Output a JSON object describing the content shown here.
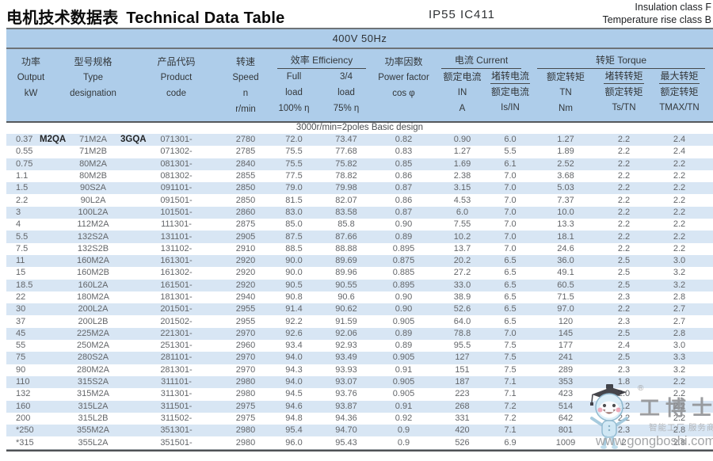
{
  "page": {
    "title_zh": "电机技术数据表",
    "title_en": "Technical Data Table",
    "protection": "IP55  IC411",
    "insulation_line1": "Insulation class F",
    "insulation_line2": "Temperature rise class B"
  },
  "table": {
    "voltage_header": "400V 50Hz",
    "section_header": "3000r/min=2poles Basic design",
    "columns": {
      "power": {
        "zh": "功率",
        "en": "Output",
        "unit": "kW"
      },
      "type": {
        "zh": "型号规格",
        "en": "Type",
        "unit": "designation"
      },
      "code": {
        "zh": "产品代码",
        "en": "Product",
        "unit": "code"
      },
      "speed": {
        "zh": "转速",
        "en": "Speed",
        "sym": "n",
        "unit": "r/min"
      },
      "efficiency_group": "效率 Efficiency",
      "eff_full": {
        "l1": "Full",
        "l2": "load",
        "l3": "100% η"
      },
      "eff_34": {
        "l1": "3/4",
        "l2": "load",
        "l3": "75% η"
      },
      "pf": {
        "zh": "功率因数",
        "en": "Power factor",
        "sym": "cos φ"
      },
      "current_group": "电流 Current",
      "in": {
        "zh": "额定电流",
        "sym": "IN",
        "unit": "A"
      },
      "isin": {
        "num": "堵转电流",
        "den": "额定电流",
        "sym": "Is/IN"
      },
      "torque_group": "转矩 Torque",
      "tn": {
        "zh": "额定转矩",
        "sym": "TN",
        "unit": "Nm"
      },
      "tstn": {
        "num": "堵转转矩",
        "den": "额定转矩",
        "sym": "Ts/TN"
      },
      "tmax": {
        "num": "最大转矩",
        "den": "额定转矩",
        "sym": "TMAX/TN"
      }
    },
    "row1_brand_prefix": "M2QA",
    "row1_brand_suffix": "3GQA",
    "rows": [
      [
        "0.37",
        "71M2A",
        "071301-",
        "2780",
        "72.0",
        "73.47",
        "0.82",
        "0.90",
        "6.0",
        "1.27",
        "2.2",
        "2.4"
      ],
      [
        "0.55",
        "71M2B",
        "071302-",
        "2785",
        "75.5",
        "77.68",
        "0.83",
        "1.27",
        "5.5",
        "1.89",
        "2.2",
        "2.4"
      ],
      [
        "0.75",
        "80M2A",
        "081301-",
        "2840",
        "75.5",
        "75.82",
        "0.85",
        "1.69",
        "6.1",
        "2.52",
        "2.2",
        "2.2"
      ],
      [
        "1.1",
        "80M2B",
        "081302-",
        "2855",
        "77.5",
        "78.82",
        "0.86",
        "2.38",
        "7.0",
        "3.68",
        "2.2",
        "2.2"
      ],
      [
        "1.5",
        "90S2A",
        "091101-",
        "2850",
        "79.0",
        "79.98",
        "0.87",
        "3.15",
        "7.0",
        "5.03",
        "2.2",
        "2.2"
      ],
      [
        "2.2",
        "90L2A",
        "091501-",
        "2850",
        "81.5",
        "82.07",
        "0.86",
        "4.53",
        "7.0",
        "7.37",
        "2.2",
        "2.2"
      ],
      [
        "3",
        "100L2A",
        "101501-",
        "2860",
        "83.0",
        "83.58",
        "0.87",
        "6.0",
        "7.0",
        "10.0",
        "2.2",
        "2.2"
      ],
      [
        "4",
        "112M2A",
        "111301-",
        "2875",
        "85.0",
        "85.8",
        "0.90",
        "7.55",
        "7.0",
        "13.3",
        "2.2",
        "2.2"
      ],
      [
        "5.5",
        "132S2A",
        "131101-",
        "2905",
        "87.5",
        "87.66",
        "0.89",
        "10.2",
        "7.0",
        "18.1",
        "2.2",
        "2.2"
      ],
      [
        "7.5",
        "132S2B",
        "131102-",
        "2910",
        "88.5",
        "88.88",
        "0.895",
        "13.7",
        "7.0",
        "24.6",
        "2.2",
        "2.2"
      ],
      [
        "11",
        "160M2A",
        "161301-",
        "2920",
        "90.0",
        "89.69",
        "0.875",
        "20.2",
        "6.5",
        "36.0",
        "2.5",
        "3.0"
      ],
      [
        "15",
        "160M2B",
        "161302-",
        "2920",
        "90.0",
        "89.96",
        "0.885",
        "27.2",
        "6.5",
        "49.1",
        "2.5",
        "3.2"
      ],
      [
        "18.5",
        "160L2A",
        "161501-",
        "2920",
        "90.5",
        "90.55",
        "0.895",
        "33.0",
        "6.5",
        "60.5",
        "2.5",
        "3.2"
      ],
      [
        "22",
        "180M2A",
        "181301-",
        "2940",
        "90.8",
        "90.6",
        "0.90",
        "38.9",
        "6.5",
        "71.5",
        "2.3",
        "2.8"
      ],
      [
        "30",
        "200L2A",
        "201501-",
        "2955",
        "91.4",
        "90.62",
        "0.90",
        "52.6",
        "6.5",
        "97.0",
        "2.2",
        "2.7"
      ],
      [
        "37",
        "200L2B",
        "201502-",
        "2955",
        "92.2",
        "91.59",
        "0.905",
        "64.0",
        "6.5",
        "120",
        "2.3",
        "2.7"
      ],
      [
        "45",
        "225M2A",
        "221301-",
        "2970",
        "92.6",
        "92.06",
        "0.89",
        "78.8",
        "7.0",
        "145",
        "2.5",
        "2.8"
      ],
      [
        "55",
        "250M2A",
        "251301-",
        "2960",
        "93.4",
        "92.93",
        "0.89",
        "95.5",
        "7.5",
        "177",
        "2.4",
        "3.0"
      ],
      [
        "75",
        "280S2A",
        "281101-",
        "2970",
        "94.0",
        "93.49",
        "0.905",
        "127",
        "7.5",
        "241",
        "2.5",
        "3.3"
      ],
      [
        "90",
        "280M2A",
        "281301-",
        "2970",
        "94.3",
        "93.93",
        "0.91",
        "151",
        "7.5",
        "289",
        "2.3",
        "3.2"
      ],
      [
        "110",
        "315S2A",
        "311101-",
        "2980",
        "94.0",
        "93.07",
        "0.905",
        "187",
        "7.1",
        "353",
        "1.8",
        "2.2"
      ],
      [
        "132",
        "315M2A",
        "311301-",
        "2980",
        "94.5",
        "93.76",
        "0.905",
        "223",
        "7.1",
        "423",
        "2.0",
        "2.2"
      ],
      [
        "160",
        "315L2A",
        "311501-",
        "2975",
        "94.6",
        "93.87",
        "0.91",
        "268",
        "7.2",
        "514",
        "2.2",
        "2.2"
      ],
      [
        "200",
        "315L2B",
        "311502-",
        "2975",
        "94.8",
        "94.36",
        "0.92",
        "331",
        "7.2",
        "642",
        "2.2",
        "2.2"
      ],
      [
        "*250",
        "355M2A",
        "351301-",
        "2980",
        "95.4",
        "94.70",
        "0.9",
        "420",
        "7.1",
        "801",
        "2.3",
        "2.8"
      ],
      [
        "*315",
        "355L2A",
        "351501-",
        "2980",
        "96.0",
        "95.43",
        "0.9",
        "526",
        "6.9",
        "1009",
        "2",
        "2.8"
      ]
    ]
  },
  "watermark": {
    "reg": "®",
    "name": "工博士",
    "subtitle": "智能工厂 服务商",
    "url": "www.gongboshi.com"
  },
  "colors": {
    "header_band": "#aecdea",
    "row_stripe": "#d8e6f4",
    "data_text": "#63666a",
    "border_dark": "#55585c"
  }
}
